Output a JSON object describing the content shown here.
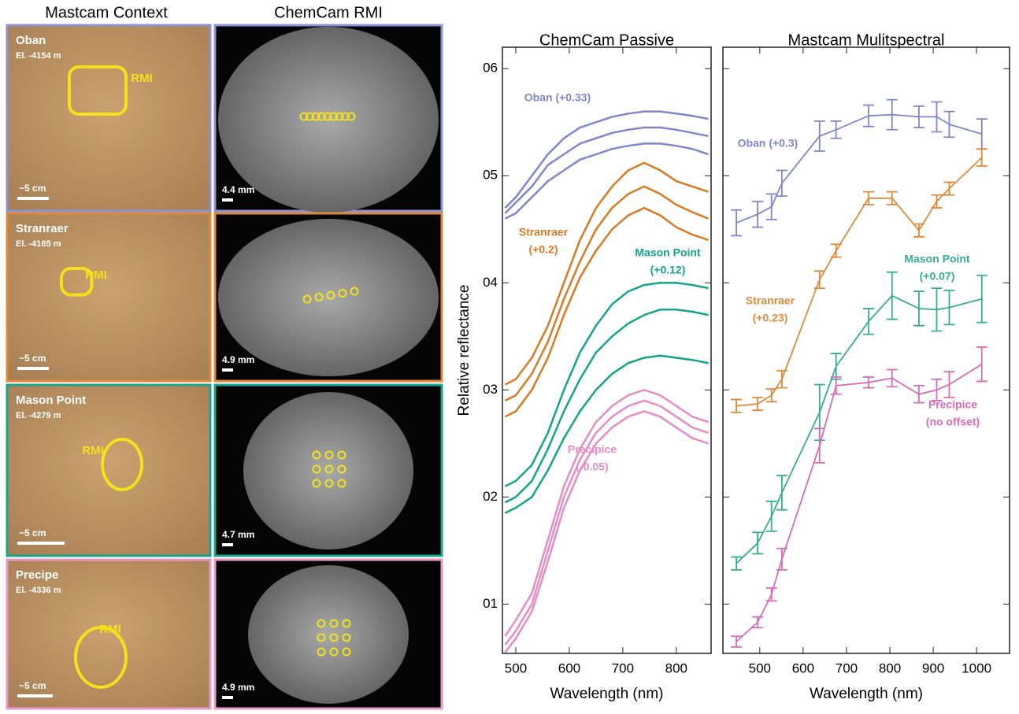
{
  "headers": [
    "Mastcam Context",
    "ChemCam RMI"
  ],
  "panels": [
    {
      "name": "Oban",
      "elevation": "El. -4154 m",
      "rmi_label": "RMI",
      "context_scale": "~5 cm",
      "rmi_scale": "4.4 mm",
      "color": "#8d92d2"
    },
    {
      "name": "Stranraer",
      "elevation": "El. -4165 m",
      "rmi_label": "RMI",
      "context_scale": "~5 cm",
      "rmi_scale": "4.9 mm",
      "color": "#e0893a"
    },
    {
      "name": "Mason Point",
      "elevation": "El. -4279 m",
      "rmi_label": "RMI",
      "context_scale": "~5 cm",
      "rmi_scale": "4.7 mm",
      "color": "#17a58b"
    },
    {
      "name": "Precipe",
      "elevation": "El. -4336 m",
      "rmi_label": "RMI",
      "context_scale": "~5 cm",
      "rmi_scale": "4.9 mm",
      "color": "#e69ac7"
    }
  ],
  "chart_data": [
    {
      "type": "line",
      "title": "ChemCam Passive",
      "x_label": "Wavelength (nm)",
      "y_label": "Relative reflectance",
      "x": [
        480,
        500,
        530,
        560,
        590,
        620,
        650,
        680,
        710,
        740,
        770,
        800,
        830,
        860
      ],
      "xlim": [
        475,
        865
      ],
      "ylim": [
        0.054,
        0.62
      ],
      "xticks": [
        500,
        600,
        700,
        800
      ],
      "yticks": [
        {
          "value": 0.1,
          "label": "01"
        },
        {
          "value": 0.2,
          "label": "02"
        },
        {
          "value": 0.3,
          "label": "03"
        },
        {
          "value": 0.4,
          "label": "04"
        },
        {
          "value": 0.5,
          "label": "05"
        },
        {
          "value": 0.6,
          "label": "06"
        }
      ],
      "series": [
        {
          "label_lines": [
            "Oban (+0.33)"
          ],
          "color": "#7f86cc",
          "values": [
            0.47,
            0.48,
            0.5,
            0.52,
            0.535,
            0.545,
            0.55,
            0.555,
            0.558,
            0.56,
            0.56,
            0.558,
            0.556,
            0.553
          ]
        },
        {
          "color": "#7f86cc",
          "values": [
            0.465,
            0.475,
            0.49,
            0.51,
            0.52,
            0.53,
            0.535,
            0.54,
            0.543,
            0.545,
            0.545,
            0.543,
            0.54,
            0.537
          ]
        },
        {
          "color": "#7f86cc",
          "values": [
            0.46,
            0.465,
            0.48,
            0.495,
            0.505,
            0.515,
            0.52,
            0.525,
            0.528,
            0.53,
            0.53,
            0.528,
            0.525,
            0.52
          ]
        },
        {
          "label_lines": [
            "Stranraer",
            "(+0.2)"
          ],
          "color": "#d97a22",
          "values": [
            0.305,
            0.31,
            0.33,
            0.36,
            0.4,
            0.44,
            0.47,
            0.49,
            0.505,
            0.512,
            0.505,
            0.495,
            0.49,
            0.485
          ]
        },
        {
          "color": "#d97a22",
          "values": [
            0.29,
            0.295,
            0.315,
            0.345,
            0.385,
            0.42,
            0.45,
            0.47,
            0.483,
            0.49,
            0.483,
            0.473,
            0.466,
            0.46
          ]
        },
        {
          "color": "#d97a22",
          "values": [
            0.275,
            0.28,
            0.3,
            0.33,
            0.37,
            0.405,
            0.43,
            0.45,
            0.463,
            0.47,
            0.463,
            0.452,
            0.445,
            0.44
          ]
        },
        {
          "label_lines": [
            "Mason Point",
            "(+0.12)"
          ],
          "color": "#12a58c",
          "values": [
            0.21,
            0.215,
            0.23,
            0.26,
            0.3,
            0.335,
            0.36,
            0.38,
            0.392,
            0.398,
            0.4,
            0.4,
            0.398,
            0.395
          ]
        },
        {
          "color": "#12a58c",
          "values": [
            0.195,
            0.2,
            0.215,
            0.245,
            0.28,
            0.31,
            0.335,
            0.35,
            0.362,
            0.37,
            0.375,
            0.375,
            0.373,
            0.37
          ]
        },
        {
          "color": "#12a58c",
          "values": [
            0.185,
            0.19,
            0.2,
            0.225,
            0.255,
            0.28,
            0.3,
            0.315,
            0.325,
            0.33,
            0.332,
            0.33,
            0.328,
            0.325
          ]
        },
        {
          "label_lines": [
            "Precipice",
            "(-0.05)"
          ],
          "color": "#e58cc5",
          "values": [
            0.07,
            0.085,
            0.11,
            0.16,
            0.21,
            0.245,
            0.27,
            0.285,
            0.295,
            0.3,
            0.295,
            0.285,
            0.275,
            0.27
          ]
        },
        {
          "color": "#e58cc5",
          "values": [
            0.062,
            0.075,
            0.1,
            0.15,
            0.2,
            0.235,
            0.26,
            0.275,
            0.285,
            0.29,
            0.285,
            0.275,
            0.265,
            0.26
          ]
        },
        {
          "color": "#e58cc5",
          "values": [
            0.055,
            0.068,
            0.093,
            0.14,
            0.19,
            0.225,
            0.25,
            0.265,
            0.275,
            0.28,
            0.275,
            0.265,
            0.255,
            0.25
          ]
        }
      ]
    },
    {
      "type": "errorbar",
      "title": "Mastcam Mulitspectral",
      "x_label": "Wavelength (nm)",
      "x": [
        446,
        495,
        527,
        551,
        638,
        676,
        751,
        805,
        867,
        908,
        937,
        1012
      ],
      "xlim": [
        415,
        1076
      ],
      "ylim": [
        0.054,
        0.62
      ],
      "xticks": [
        500,
        600,
        700,
        800,
        900,
        1000
      ],
      "yticks": [
        0.1,
        0.2,
        0.3,
        0.4,
        0.5,
        0.6
      ],
      "series": [
        {
          "label_lines": [
            "Oban (+0.3)"
          ],
          "color": "#7f86cc",
          "values": [
            0.456,
            0.464,
            0.471,
            0.493,
            0.537,
            0.543,
            0.556,
            0.557,
            0.555,
            0.555,
            0.548,
            0.539
          ],
          "errors": [
            0.012,
            0.012,
            0.012,
            0.012,
            0.014,
            0.008,
            0.01,
            0.014,
            0.01,
            0.014,
            0.012,
            0.014
          ]
        },
        {
          "label_lines": [
            "Stranraer",
            "(+0.23)"
          ],
          "color": "#e0893a",
          "values": [
            0.285,
            0.287,
            0.295,
            0.31,
            0.403,
            0.43,
            0.479,
            0.479,
            0.449,
            0.476,
            0.488,
            0.517
          ],
          "errors": [
            0.006,
            0.006,
            0.006,
            0.008,
            0.008,
            0.006,
            0.006,
            0.006,
            0.006,
            0.006,
            0.006,
            0.008
          ]
        },
        {
          "label_lines": [
            "Mason Point",
            "(+0.07)"
          ],
          "color": "#35ad90",
          "values": [
            0.138,
            0.157,
            0.182,
            0.204,
            0.279,
            0.322,
            0.364,
            0.388,
            0.376,
            0.375,
            0.377,
            0.385
          ],
          "errors": [
            0.006,
            0.01,
            0.014,
            0.016,
            0.026,
            0.012,
            0.012,
            0.022,
            0.016,
            0.02,
            0.016,
            0.022
          ]
        },
        {
          "label_lines": [
            "Precipice",
            "(no offset)"
          ],
          "color": "#d86bb8",
          "values": [
            0.065,
            0.083,
            0.109,
            0.142,
            0.248,
            0.304,
            0.307,
            0.311,
            0.296,
            0.3,
            0.305,
            0.324
          ],
          "errors": [
            0.005,
            0.005,
            0.006,
            0.01,
            0.016,
            0.008,
            0.005,
            0.008,
            0.008,
            0.01,
            0.012,
            0.016
          ]
        }
      ]
    }
  ]
}
